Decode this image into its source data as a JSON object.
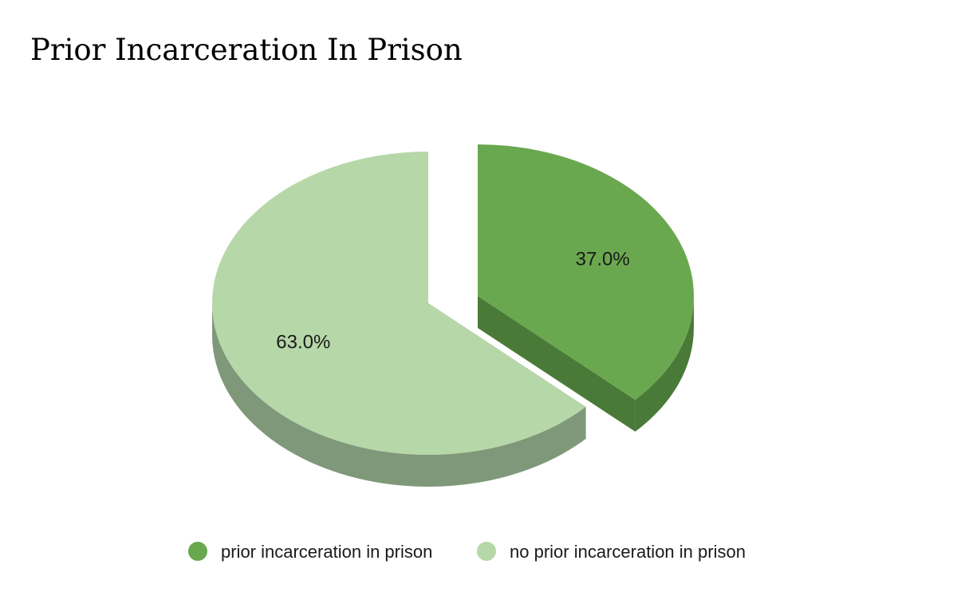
{
  "chart_data": {
    "type": "pie",
    "title": "Prior Incarceration In Prison",
    "categories": [
      "prior incarceration in prison",
      "no prior incarceration in prison"
    ],
    "values": [
      37.0,
      63.0
    ],
    "value_labels": [
      "37.0%",
      "63.0%"
    ],
    "colors": [
      "#6aa84f",
      "#b6d7a8"
    ],
    "side_colors": [
      "#4a7a38",
      "#80987a"
    ],
    "legend_position": "bottom",
    "exploded": [
      "prior incarceration in prison"
    ],
    "style": "3d"
  }
}
